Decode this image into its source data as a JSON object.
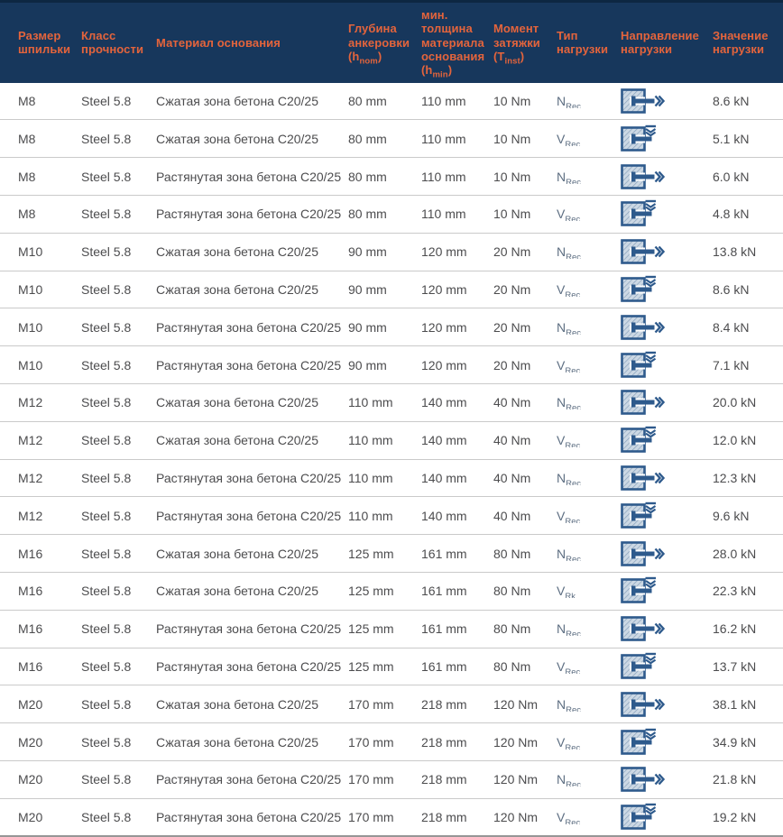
{
  "colors": {
    "header_bg": "#17375c",
    "header_top_stripe": "#0d2742",
    "header_text": "#e4643c",
    "body_text": "#4c4c4e",
    "load_type_text": "#5d6e82",
    "row_divider": "#cacaca",
    "icon_blue": "#2e5a8c",
    "icon_hatch_light": "#ccd8e4",
    "icon_hatch_dark": "#8aa3bd"
  },
  "table": {
    "columns": [
      {
        "id": "size",
        "label": "Размер шпильки"
      },
      {
        "id": "strength",
        "label": "Класс прочности"
      },
      {
        "id": "material",
        "label": "Материал основания"
      },
      {
        "id": "depth",
        "label": "Глубина анкеровки",
        "formula": {
          "pre": "(h",
          "sub": "nom",
          "post": ")"
        }
      },
      {
        "id": "min_thickness",
        "label": "мин. толщина материала основания",
        "formula": {
          "pre": "(h",
          "sub": "min",
          "post": ")"
        }
      },
      {
        "id": "torque",
        "label": "Момент затяжки",
        "formula": {
          "pre": "(T",
          "sub": "inst",
          "post": ")"
        }
      },
      {
        "id": "load_type",
        "label": "Тип нагрузки"
      },
      {
        "id": "direction",
        "label": "Направление нагрузки"
      },
      {
        "id": "value",
        "label": "Значение нагрузки"
      }
    ],
    "rows": [
      {
        "size": "M8",
        "strength": "Steel 5.8",
        "material": "Сжатая зона бетона C20/25",
        "depth": "80 mm",
        "min_thickness": "110 mm",
        "torque": "10 Nm",
        "load_base": "N",
        "load_sub": "Rec",
        "direction": "tension-right",
        "value": "8.6 kN"
      },
      {
        "size": "M8",
        "strength": "Steel 5.8",
        "material": "Сжатая зона бетона C20/25",
        "depth": "80 mm",
        "min_thickness": "110 mm",
        "torque": "10 Nm",
        "load_base": "V",
        "load_sub": "Rec",
        "direction": "shear-down",
        "value": "5.1 kN"
      },
      {
        "size": "M8",
        "strength": "Steel 5.8",
        "material": "Растянутая зона бетона C20/25",
        "depth": "80 mm",
        "min_thickness": "110 mm",
        "torque": "10 Nm",
        "load_base": "N",
        "load_sub": "Rec",
        "direction": "tension-right",
        "value": "6.0 kN"
      },
      {
        "size": "M8",
        "strength": "Steel 5.8",
        "material": "Растянутая зона бетона C20/25",
        "depth": "80 mm",
        "min_thickness": "110 mm",
        "torque": "10 Nm",
        "load_base": "V",
        "load_sub": "Rec",
        "direction": "shear-down",
        "value": "4.8 kN"
      },
      {
        "size": "M10",
        "strength": "Steel 5.8",
        "material": "Сжатая зона бетона C20/25",
        "depth": "90 mm",
        "min_thickness": "120 mm",
        "torque": "20 Nm",
        "load_base": "N",
        "load_sub": "Rec",
        "direction": "tension-right",
        "value": "13.8 kN"
      },
      {
        "size": "M10",
        "strength": "Steel 5.8",
        "material": "Сжатая зона бетона C20/25",
        "depth": "90 mm",
        "min_thickness": "120 mm",
        "torque": "20 Nm",
        "load_base": "V",
        "load_sub": "Rec",
        "direction": "shear-down",
        "value": "8.6 kN"
      },
      {
        "size": "M10",
        "strength": "Steel 5.8",
        "material": "Растянутая зона бетона C20/25",
        "depth": "90 mm",
        "min_thickness": "120 mm",
        "torque": "20 Nm",
        "load_base": "N",
        "load_sub": "Rec",
        "direction": "tension-right",
        "value": "8.4 kN"
      },
      {
        "size": "M10",
        "strength": "Steel 5.8",
        "material": "Растянутая зона бетона C20/25",
        "depth": "90 mm",
        "min_thickness": "120 mm",
        "torque": "20 Nm",
        "load_base": "V",
        "load_sub": "Rec",
        "direction": "shear-down",
        "value": "7.1 kN"
      },
      {
        "size": "M12",
        "strength": "Steel 5.8",
        "material": "Сжатая зона бетона C20/25",
        "depth": "110 mm",
        "min_thickness": "140 mm",
        "torque": "40 Nm",
        "load_base": "N",
        "load_sub": "Rec",
        "direction": "tension-right",
        "value": "20.0 kN"
      },
      {
        "size": "M12",
        "strength": "Steel 5.8",
        "material": "Сжатая зона бетона C20/25",
        "depth": "110 mm",
        "min_thickness": "140 mm",
        "torque": "40 Nm",
        "load_base": "V",
        "load_sub": "Rec",
        "direction": "shear-down",
        "value": "12.0 kN"
      },
      {
        "size": "M12",
        "strength": "Steel 5.8",
        "material": "Растянутая зона бетона C20/25",
        "depth": "110 mm",
        "min_thickness": "140 mm",
        "torque": "40 Nm",
        "load_base": "N",
        "load_sub": "Rec",
        "direction": "tension-right",
        "value": "12.3 kN"
      },
      {
        "size": "M12",
        "strength": "Steel 5.8",
        "material": "Растянутая зона бетона C20/25",
        "depth": "110 mm",
        "min_thickness": "140 mm",
        "torque": "40 Nm",
        "load_base": "V",
        "load_sub": "Rec",
        "direction": "shear-down",
        "value": "9.6 kN"
      },
      {
        "size": "M16",
        "strength": "Steel 5.8",
        "material": "Сжатая зона бетона C20/25",
        "depth": "125 mm",
        "min_thickness": "161 mm",
        "torque": "80 Nm",
        "load_base": "N",
        "load_sub": "Rec",
        "direction": "tension-right",
        "value": "28.0 kN"
      },
      {
        "size": "M16",
        "strength": "Steel 5.8",
        "material": "Сжатая зона бетона C20/25",
        "depth": "125 mm",
        "min_thickness": "161 mm",
        "torque": "80 Nm",
        "load_base": "V",
        "load_sub": "Rk",
        "direction": "shear-down",
        "value": "22.3 kN"
      },
      {
        "size": "M16",
        "strength": "Steel 5.8",
        "material": "Растянутая зона бетона C20/25",
        "depth": "125 mm",
        "min_thickness": "161 mm",
        "torque": "80 Nm",
        "load_base": "N",
        "load_sub": "Rec",
        "direction": "tension-right",
        "value": "16.2 kN"
      },
      {
        "size": "M16",
        "strength": "Steel 5.8",
        "material": "Растянутая зона бетона C20/25",
        "depth": "125 mm",
        "min_thickness": "161 mm",
        "torque": "80 Nm",
        "load_base": "V",
        "load_sub": "Rec",
        "direction": "shear-down",
        "value": "13.7 kN"
      },
      {
        "size": "M20",
        "strength": "Steel 5.8",
        "material": "Сжатая зона бетона C20/25",
        "depth": "170 mm",
        "min_thickness": "218 mm",
        "torque": "120 Nm",
        "load_base": "N",
        "load_sub": "Rec",
        "direction": "tension-right",
        "value": "38.1 kN"
      },
      {
        "size": "M20",
        "strength": "Steel 5.8",
        "material": "Сжатая зона бетона C20/25",
        "depth": "170 mm",
        "min_thickness": "218 mm",
        "torque": "120 Nm",
        "load_base": "V",
        "load_sub": "Rec",
        "direction": "shear-down",
        "value": "34.9 kN"
      },
      {
        "size": "M20",
        "strength": "Steel 5.8",
        "material": "Растянутая зона бетона C20/25",
        "depth": "170 mm",
        "min_thickness": "218 mm",
        "torque": "120 Nm",
        "load_base": "N",
        "load_sub": "Rec",
        "direction": "tension-right",
        "value": "21.8 kN"
      },
      {
        "size": "M20",
        "strength": "Steel 5.8",
        "material": "Растянутая зона бетона C20/25",
        "depth": "170 mm",
        "min_thickness": "218 mm",
        "torque": "120 Nm",
        "load_base": "V",
        "load_sub": "Rec",
        "direction": "shear-down",
        "value": "19.2 kN"
      }
    ]
  }
}
